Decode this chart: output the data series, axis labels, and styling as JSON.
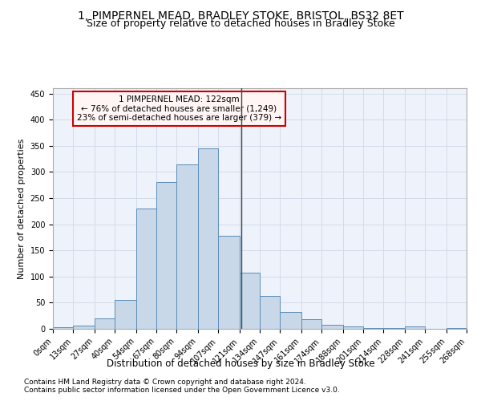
{
  "title1": "1, PIMPERNEL MEAD, BRADLEY STOKE, BRISTOL, BS32 8ET",
  "title2": "Size of property relative to detached houses in Bradley Stoke",
  "xlabel": "Distribution of detached houses by size in Bradley Stoke",
  "ylabel": "Number of detached properties",
  "footer1": "Contains HM Land Registry data © Crown copyright and database right 2024.",
  "footer2": "Contains public sector information licensed under the Open Government Licence v3.0.",
  "annotation_title": "1 PIMPERNEL MEAD: 122sqm",
  "annotation_line1": "← 76% of detached houses are smaller (1,249)",
  "annotation_line2": "23% of semi-detached houses are larger (379) →",
  "property_size": 122,
  "bin_edges": [
    0,
    13,
    27,
    40,
    54,
    67,
    80,
    94,
    107,
    121,
    134,
    147,
    161,
    174,
    188,
    201,
    214,
    228,
    241,
    255,
    268
  ],
  "bar_heights": [
    3,
    6,
    20,
    55,
    230,
    280,
    315,
    345,
    178,
    108,
    63,
    32,
    18,
    7,
    4,
    1,
    1,
    4,
    0,
    1
  ],
  "bar_color": "#c8d8e8",
  "bar_edge_color": "#5b8db8",
  "vline_color": "#444444",
  "grid_color": "#d0d8e8",
  "background_color": "#eef2fa",
  "annotation_facecolor": "#fff5f5",
  "annotation_border_color": "#cc0000",
  "ylim": [
    0,
    460
  ],
  "title1_fontsize": 10,
  "title2_fontsize": 9,
  "xlabel_fontsize": 8.5,
  "ylabel_fontsize": 8,
  "tick_fontsize": 7,
  "annotation_fontsize": 7.5,
  "footer_fontsize": 6.5
}
